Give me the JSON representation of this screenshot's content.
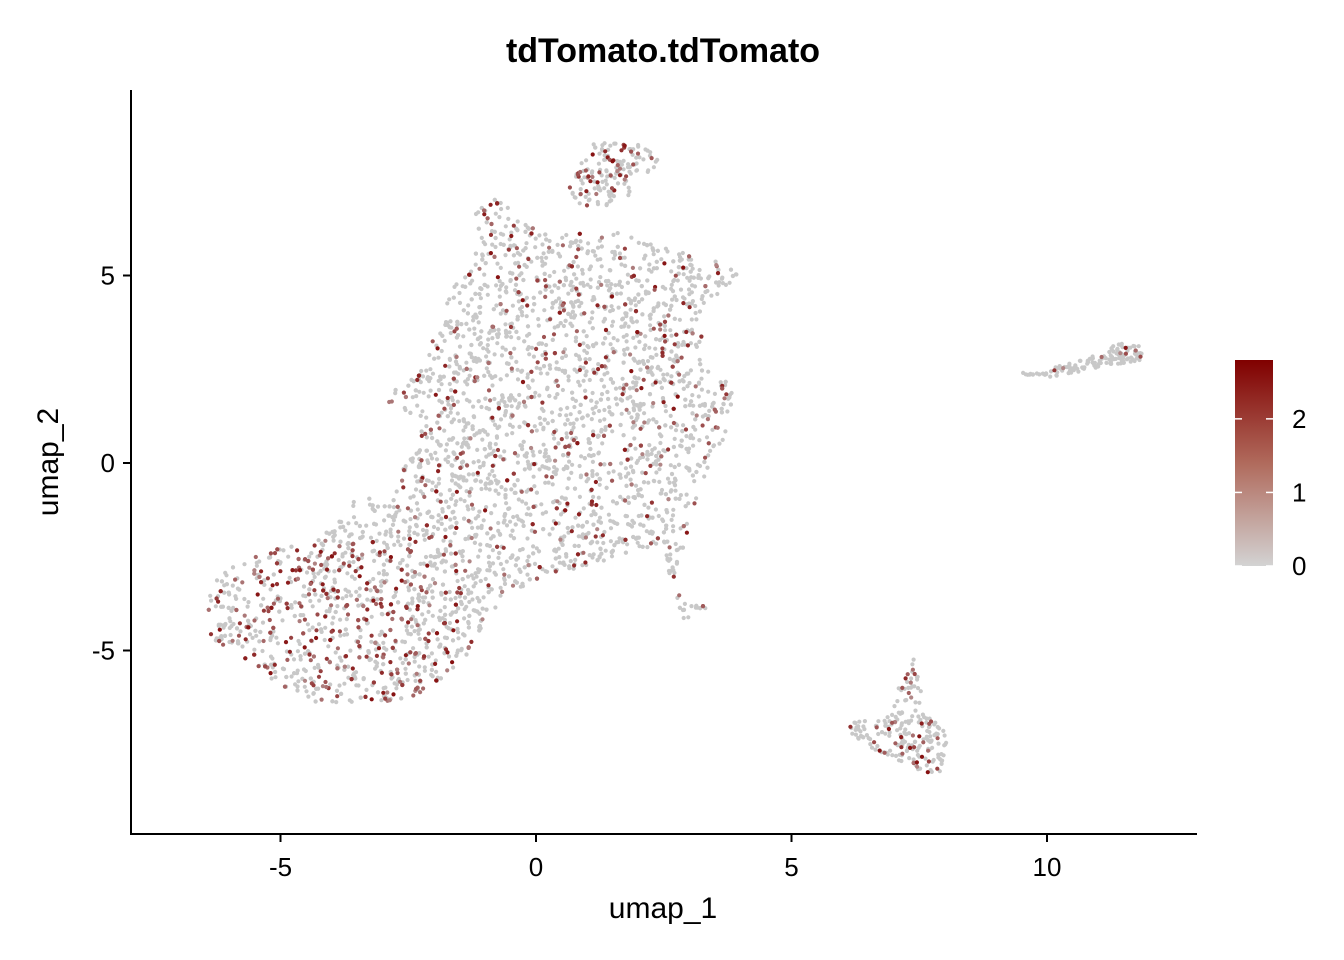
{
  "chart_data": {
    "type": "scatter",
    "title": "tdTomato.tdTomato",
    "xlabel": "umap_1",
    "ylabel": "umap_2",
    "xlim": [
      -8.1,
      12.8
    ],
    "ylim": [
      -9.9,
      10.0
    ],
    "x_ticks": [
      -5,
      0,
      5,
      10
    ],
    "y_ticks": [
      -5,
      0,
      5
    ],
    "x_tick_labels": [
      "-5",
      "0",
      "5",
      "10"
    ],
    "y_tick_labels": [
      "-5",
      "0",
      "5"
    ],
    "grid": false,
    "legend": {
      "position": "right",
      "kind": "continuous colorbar",
      "range": [
        0,
        2.8
      ],
      "ticks": [
        0,
        1,
        2
      ],
      "tick_labels": [
        "0",
        "1",
        "2"
      ],
      "low_color": "#d3d3d3",
      "high_color": "#800000"
    },
    "point_color_default": "#c8c8c8",
    "clusters": [
      {
        "name": "main",
        "note": "large body, approx points (umap_1, umap_2)",
        "center": [
          -1.0,
          0.5
        ]
      },
      {
        "name": "top-lobe",
        "center": [
          1.6,
          7.9
        ]
      },
      {
        "name": "right-small",
        "center": [
          10.8,
          2.7
        ]
      },
      {
        "name": "bottom-right",
        "center": [
          7.2,
          -7.3
        ]
      }
    ]
  }
}
